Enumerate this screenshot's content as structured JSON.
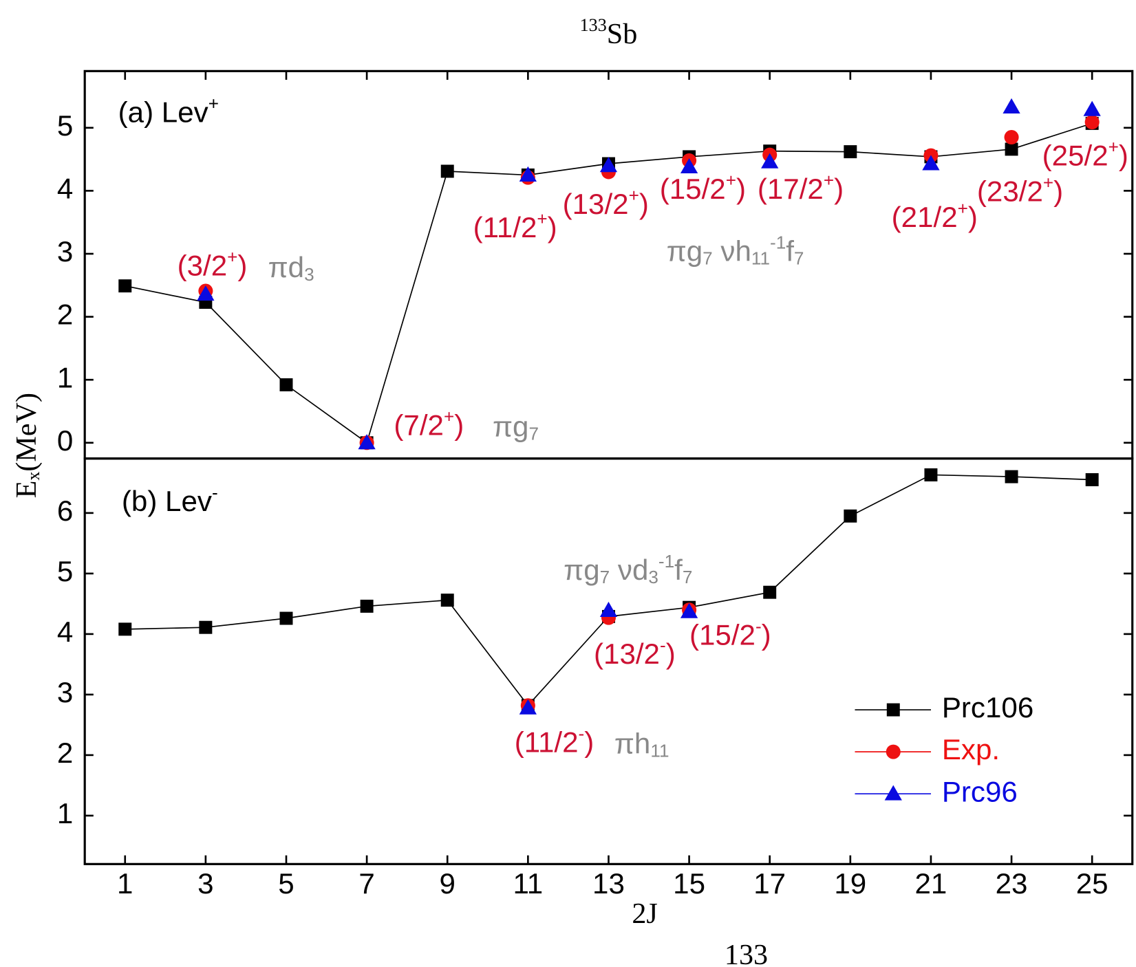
{
  "title": [
    {
      "text": "133",
      "shift": "sup"
    },
    {
      "text": "Sb"
    }
  ],
  "y_label": [
    {
      "text": "E"
    },
    {
      "text": "x",
      "shift": "sub"
    },
    {
      "text": "(MeV)"
    }
  ],
  "footer": "133",
  "chart_data": [
    {
      "type": "line",
      "panel_label": [
        {
          "text": "(a) Lev"
        },
        {
          "text": "+",
          "shift": "sup"
        }
      ],
      "x": [
        1,
        3,
        5,
        7,
        9,
        11,
        13,
        15,
        17,
        19,
        21,
        23,
        25
      ],
      "xlim": [
        0,
        26
      ],
      "xticks": [
        1,
        3,
        5,
        7,
        9,
        11,
        13,
        15,
        17,
        19,
        21,
        23,
        25
      ],
      "ylim": [
        -0.25,
        5.9
      ],
      "yticks": [
        0,
        1,
        2,
        3,
        4,
        5
      ],
      "series": [
        {
          "color": "#000000",
          "marker": "square",
          "line": true,
          "values": [
            2.49,
            2.23,
            0.92,
            0.0,
            4.31,
            4.25,
            4.43,
            4.54,
            4.63,
            4.62,
            4.54,
            4.66,
            5.07
          ]
        },
        {
          "color": "#ee1111",
          "marker": "circle",
          "line": false,
          "values": [
            null,
            2.41,
            null,
            0.0,
            null,
            4.21,
            4.3,
            4.48,
            4.57,
            null,
            4.56,
            4.85,
            5.09
          ]
        },
        {
          "color": "#0a0ae0",
          "marker": "triangle",
          "line": false,
          "values": [
            null,
            2.36,
            null,
            0.0,
            null,
            4.25,
            4.4,
            4.38,
            4.46,
            null,
            4.43,
            5.33,
            5.29
          ]
        }
      ],
      "annotations": [
        {
          "color": "#cc1133",
          "parts": [
            {
              "text": "(3/2"
            },
            {
              "text": "+",
              "shift": "sup"
            },
            {
              "text": ")"
            }
          ]
        },
        {
          "color": "#888888",
          "parts": [
            {
              "text": "πd"
            },
            {
              "text": "3",
              "shift": "sub"
            }
          ]
        },
        {
          "color": "#cc1133",
          "parts": [
            {
              "text": "(7/2"
            },
            {
              "text": "+",
              "shift": "sup"
            },
            {
              "text": ")"
            }
          ]
        },
        {
          "color": "#888888",
          "parts": [
            {
              "text": "πg"
            },
            {
              "text": "7",
              "shift": "sub"
            }
          ]
        },
        {
          "color": "#cc1133",
          "parts": [
            {
              "text": "(11/2"
            },
            {
              "text": "+",
              "shift": "sup"
            },
            {
              "text": ")"
            }
          ]
        },
        {
          "color": "#cc1133",
          "parts": [
            {
              "text": "(13/2"
            },
            {
              "text": "+",
              "shift": "sup"
            },
            {
              "text": ")"
            }
          ]
        },
        {
          "color": "#cc1133",
          "parts": [
            {
              "text": "(15/2"
            },
            {
              "text": "+",
              "shift": "sup"
            },
            {
              "text": ")"
            }
          ]
        },
        {
          "color": "#cc1133",
          "parts": [
            {
              "text": "(17/2"
            },
            {
              "text": "+",
              "shift": "sup"
            },
            {
              "text": ")"
            }
          ]
        },
        {
          "color": "#cc1133",
          "parts": [
            {
              "text": "(21/2"
            },
            {
              "text": "+",
              "shift": "sup"
            },
            {
              "text": ")"
            }
          ]
        },
        {
          "color": "#cc1133",
          "parts": [
            {
              "text": "(23/2"
            },
            {
              "text": "+",
              "shift": "sup"
            },
            {
              "text": ")"
            }
          ]
        },
        {
          "color": "#cc1133",
          "parts": [
            {
              "text": "(25/2"
            },
            {
              "text": "+",
              "shift": "sup"
            },
            {
              "text": ")"
            }
          ]
        },
        {
          "color": "#888888",
          "parts": [
            {
              "text": "πg"
            },
            {
              "text": "7",
              "shift": "sub"
            },
            {
              "text": " νh"
            },
            {
              "text": "11",
              "shift": "sub"
            },
            {
              "text": "-1",
              "shift": "sup"
            },
            {
              "text": "f"
            },
            {
              "text": "7",
              "shift": "sub"
            }
          ]
        }
      ]
    },
    {
      "type": "line",
      "panel_label": [
        {
          "text": "(b) Lev"
        },
        {
          "text": "-",
          "shift": "sup"
        }
      ],
      "x_label": "2J",
      "x": [
        1,
        3,
        5,
        7,
        9,
        11,
        13,
        15,
        17,
        19,
        21,
        23,
        25
      ],
      "xlim": [
        0,
        26
      ],
      "xticks": [
        1,
        3,
        5,
        7,
        9,
        11,
        13,
        15,
        17,
        19,
        21,
        23,
        25
      ],
      "ylim": [
        0.2,
        6.9
      ],
      "yticks": [
        1,
        2,
        3,
        4,
        5,
        6
      ],
      "legend": "lower right",
      "series": [
        {
          "name": "Prc106",
          "color": "#000000",
          "marker": "square",
          "line": true,
          "values": [
            4.08,
            4.11,
            4.26,
            4.46,
            4.56,
            2.82,
            4.29,
            4.44,
            4.69,
            5.95,
            6.63,
            6.6,
            6.55
          ]
        },
        {
          "name": "Exp.",
          "color": "#ee1111",
          "marker": "circle",
          "line": false,
          "values": [
            null,
            null,
            null,
            null,
            null,
            2.82,
            4.27,
            4.4,
            null,
            null,
            null,
            null,
            null
          ]
        },
        {
          "name": "Prc96",
          "color": "#0a0ae0",
          "marker": "triangle",
          "line": false,
          "values": [
            null,
            null,
            null,
            null,
            null,
            2.78,
            4.39,
            4.37,
            null,
            null,
            null,
            null,
            null
          ]
        }
      ],
      "annotations": [
        {
          "color": "#888888",
          "parts": [
            {
              "text": "πg"
            },
            {
              "text": "7",
              "shift": "sub"
            },
            {
              "text": " νd"
            },
            {
              "text": "3",
              "shift": "sub"
            },
            {
              "text": "-1",
              "shift": "sup"
            },
            {
              "text": "f"
            },
            {
              "text": "7",
              "shift": "sub"
            }
          ]
        },
        {
          "color": "#cc1133",
          "parts": [
            {
              "text": "(13/2"
            },
            {
              "text": "-",
              "shift": "sup"
            },
            {
              "text": ")"
            }
          ]
        },
        {
          "color": "#cc1133",
          "parts": [
            {
              "text": "(15/2"
            },
            {
              "text": "-",
              "shift": "sup"
            },
            {
              "text": ")"
            }
          ]
        },
        {
          "color": "#cc1133",
          "parts": [
            {
              "text": "(11/2"
            },
            {
              "text": "-",
              "shift": "sup"
            },
            {
              "text": ")"
            }
          ]
        },
        {
          "color": "#888888",
          "parts": [
            {
              "text": "πh"
            },
            {
              "text": "11",
              "shift": "sub"
            }
          ]
        }
      ]
    }
  ]
}
